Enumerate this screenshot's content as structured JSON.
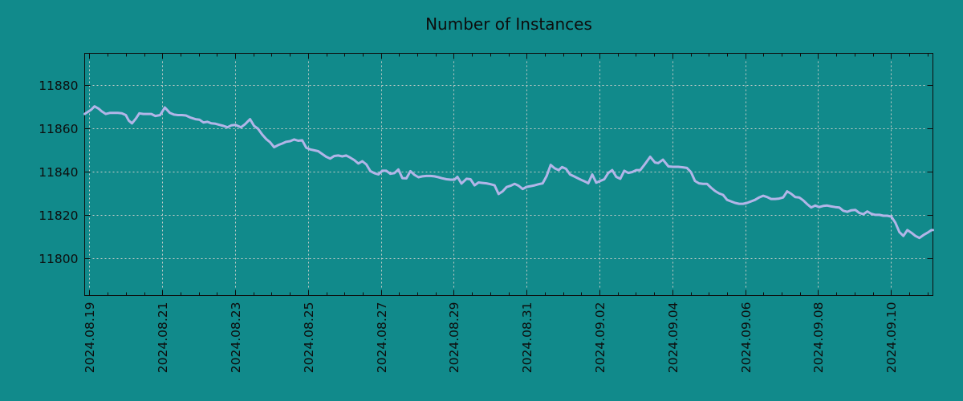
{
  "title": "Number of Instances",
  "colors": {
    "background": "#118a8b",
    "line": "#b2b5e8",
    "grid": "#c8ccc8",
    "axis": "#0d0d0d",
    "text": "#0d0d0d"
  },
  "chart_data": {
    "type": "line",
    "title": "Number of Instances",
    "xlabel": "",
    "ylabel": "",
    "legend": "none",
    "grid": "dashed",
    "x_unit": "days since 2024-08-19 00:00",
    "x_range_days": [
      -0.07,
      23.21
    ],
    "y_range": [
      11783,
      11894.4
    ],
    "y_ticks": [
      11800,
      11820,
      11840,
      11860,
      11880
    ],
    "x_tick_days": [
      0,
      2,
      4,
      6,
      8,
      10,
      12,
      14,
      16,
      18,
      20,
      22
    ],
    "x_tick_labels": [
      "2024.08.19",
      "2024.08.21",
      "2024.08.23",
      "2024.08.25",
      "2024.08.27",
      "2024.08.29",
      "2024.08.31",
      "2024.09.02",
      "2024.09.04",
      "2024.09.06",
      "2024.09.08",
      "2024.09.10"
    ],
    "x_minor_tick_interval_days": 0.5,
    "series": [
      {
        "name": "instances",
        "t_days": [
          -0.07,
          0.11,
          0.2,
          0.31,
          0.4,
          0.51,
          0.62,
          0.73,
          0.84,
          0.95,
          1.06,
          1.14,
          1.23,
          1.34,
          1.43,
          1.54,
          1.65,
          1.76,
          1.87,
          2.0,
          2.13,
          2.27,
          2.38,
          2.49,
          2.6,
          2.71,
          2.84,
          2.97,
          3.08,
          3.19,
          3.3,
          3.41,
          3.52,
          3.63,
          3.74,
          3.85,
          3.96,
          4.07,
          4.22,
          4.33,
          4.47,
          4.58,
          4.69,
          4.8,
          4.91,
          5.02,
          5.13,
          5.24,
          5.35,
          5.46,
          5.57,
          5.68,
          5.79,
          5.9,
          6.01,
          6.12,
          6.23,
          6.34,
          6.45,
          6.56,
          6.67,
          6.78,
          6.89,
          7.0,
          7.11,
          7.22,
          7.33,
          7.44,
          7.55,
          7.66,
          7.77,
          7.88,
          7.99,
          8.1,
          8.21,
          8.32,
          8.43,
          8.54,
          8.65,
          8.76,
          8.87,
          8.98,
          9.09,
          9.2,
          9.31,
          9.42,
          9.53,
          9.64,
          9.75,
          9.86,
          9.97,
          10.08,
          10.16,
          10.27,
          10.41,
          10.52,
          10.63,
          10.74,
          10.85,
          10.96,
          11.07,
          11.18,
          11.29,
          11.4,
          11.51,
          11.62,
          11.73,
          11.84,
          11.95,
          12.06,
          12.17,
          12.28,
          12.39,
          12.5,
          12.61,
          12.72,
          12.83,
          12.94,
          13.03,
          13.14,
          13.25,
          13.36,
          13.47,
          13.58,
          13.69,
          13.75,
          13.86,
          13.97,
          14.08,
          14.19,
          14.3,
          14.41,
          14.52,
          14.63,
          14.74,
          14.85,
          14.96,
          15.07,
          15.18,
          15.29,
          15.45,
          15.58,
          15.67,
          15.8,
          15.95,
          16.08,
          16.22,
          16.35,
          16.46,
          16.57,
          16.68,
          16.79,
          16.9,
          17.01,
          17.12,
          17.23,
          17.34,
          17.45,
          17.56,
          17.67,
          17.78,
          17.89,
          18.0,
          18.11,
          18.22,
          18.33,
          18.44,
          18.55,
          18.66,
          18.77,
          18.88,
          18.99,
          19.1,
          19.21,
          19.32,
          19.43,
          19.54,
          19.65,
          19.76,
          19.87,
          19.98,
          20.09,
          20.2,
          20.31,
          20.42,
          20.53,
          20.64,
          20.75,
          20.86,
          20.97,
          21.08,
          21.19,
          21.3,
          21.41,
          21.52,
          21.63,
          21.74,
          21.85,
          21.96,
          22.07,
          22.18,
          22.29,
          22.4,
          22.51,
          22.62,
          22.73,
          22.84,
          22.95,
          23.06,
          23.17,
          23.21
        ],
        "values": [
          11866.5,
          11868.5,
          11870,
          11869,
          11867.7,
          11866.5,
          11867,
          11867,
          11867,
          11866.8,
          11866,
          11863.5,
          11862.2,
          11864.5,
          11866.8,
          11866.5,
          11866.5,
          11866.5,
          11865.6,
          11866,
          11869.5,
          11867,
          11866.2,
          11866,
          11866,
          11865.8,
          11864.8,
          11864.1,
          11863.9,
          11862.6,
          11862.9,
          11862.2,
          11862,
          11861.5,
          11861,
          11860.4,
          11861.3,
          11861.5,
          11860.4,
          11861.8,
          11864.1,
          11861,
          11859.7,
          11857.1,
          11855,
          11853.5,
          11851.2,
          11852.2,
          11852.9,
          11853.7,
          11854,
          11854.8,
          11854.2,
          11854.4,
          11851,
          11850.2,
          11849.8,
          11849.4,
          11848.1,
          11846.8,
          11846,
          11847.2,
          11847.4,
          11847,
          11847.4,
          11846.4,
          11845.3,
          11843.7,
          11844.8,
          11843.3,
          11840.2,
          11839.3,
          11838.7,
          11840.4,
          11840.4,
          11839,
          11839.3,
          11841,
          11837,
          11836.9,
          11840.2,
          11838.5,
          11837.4,
          11837.8,
          11838,
          11838,
          11837.8,
          11837.4,
          11836.9,
          11836.5,
          11836.3,
          11836.3,
          11837.6,
          11834.5,
          11836.7,
          11836.5,
          11833.7,
          11835,
          11834.8,
          11834.6,
          11834.2,
          11833.7,
          11829.7,
          11830.9,
          11832.9,
          11833.5,
          11834.4,
          11833.5,
          11832,
          11833,
          11833.3,
          11833.7,
          11834.2,
          11834.6,
          11838,
          11843.1,
          11841.5,
          11840.7,
          11842.1,
          11841.3,
          11838.7,
          11837.8,
          11836.9,
          11836,
          11835.2,
          11834.6,
          11838.7,
          11834.9,
          11835.7,
          11836.5,
          11839.4,
          11840.7,
          11837.6,
          11836.7,
          11840.4,
          11839.4,
          11839.8,
          11840.7,
          11840.7,
          11843.1,
          11846.8,
          11844.2,
          11843.9,
          11845.5,
          11842.4,
          11842.2,
          11842.2,
          11842,
          11841.7,
          11839.8,
          11835.7,
          11834.6,
          11834.4,
          11834.4,
          11832.6,
          11831.1,
          11830,
          11829.3,
          11827,
          11826.3,
          11825.6,
          11825.2,
          11825.2,
          11825.6,
          11826.3,
          11827,
          11828.1,
          11828.9,
          11828.3,
          11827.4,
          11827.4,
          11827.6,
          11828.1,
          11830.9,
          11829.8,
          11828.3,
          11828.1,
          11826.8,
          11825,
          11823.5,
          11824.4,
          11823.7,
          11824.2,
          11824.4,
          11824,
          11823.7,
          11823.5,
          11822,
          11821.5,
          11822.2,
          11822.4,
          11821,
          11820.4,
          11821.7,
          11820.6,
          11820.1,
          11820.1,
          11819.7,
          11819.7,
          11819.3,
          11816.5,
          11812.2,
          11810.4,
          11813.1,
          11811.9,
          11810.4,
          11809.5,
          11810.8,
          11811.9,
          11813.1,
          11813.1
        ]
      }
    ]
  }
}
